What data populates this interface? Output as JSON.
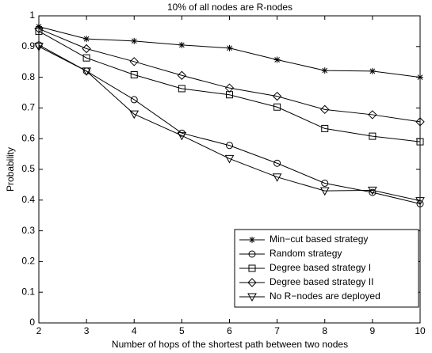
{
  "chart_data": {
    "type": "line",
    "title": "10% of all nodes are R-nodes",
    "xlabel": "Number of hops of the shortest path between two nodes",
    "ylabel": "Probability",
    "x": [
      2,
      3,
      4,
      5,
      6,
      7,
      8,
      9,
      10
    ],
    "xlim": [
      2,
      10
    ],
    "xticks": [
      2,
      3,
      4,
      5,
      6,
      7,
      8,
      9,
      10
    ],
    "ylim": [
      0,
      1
    ],
    "yticks": [
      0,
      0.1,
      0.2,
      0.3,
      0.4,
      0.5,
      0.6,
      0.7,
      0.8,
      0.9,
      1
    ],
    "grid": false,
    "legend": "lower right",
    "series": [
      {
        "name": "Min−cut based strategy",
        "color": "#000000",
        "marker": "star",
        "values": [
          0.965,
          0.925,
          0.918,
          0.905,
          0.895,
          0.857,
          0.822,
          0.82,
          0.8
        ]
      },
      {
        "name": "Random strategy",
        "color": "#000000",
        "marker": "circle",
        "values": [
          0.905,
          0.82,
          0.727,
          0.618,
          0.578,
          0.52,
          0.455,
          0.425,
          0.388
        ]
      },
      {
        "name": "Degree based strategy I",
        "color": "#000000",
        "marker": "square",
        "values": [
          0.95,
          0.863,
          0.808,
          0.763,
          0.743,
          0.703,
          0.633,
          0.608,
          0.59
        ]
      },
      {
        "name": "Degree based strategy II",
        "color": "#000000",
        "marker": "diamond",
        "values": [
          0.958,
          0.893,
          0.851,
          0.806,
          0.765,
          0.738,
          0.695,
          0.678,
          0.655
        ]
      },
      {
        "name": "No R−nodes are deployed",
        "color": "#000000",
        "marker": "triangle-down",
        "values": [
          0.9,
          0.82,
          0.68,
          0.61,
          0.535,
          0.475,
          0.43,
          0.432,
          0.398
        ]
      }
    ]
  }
}
